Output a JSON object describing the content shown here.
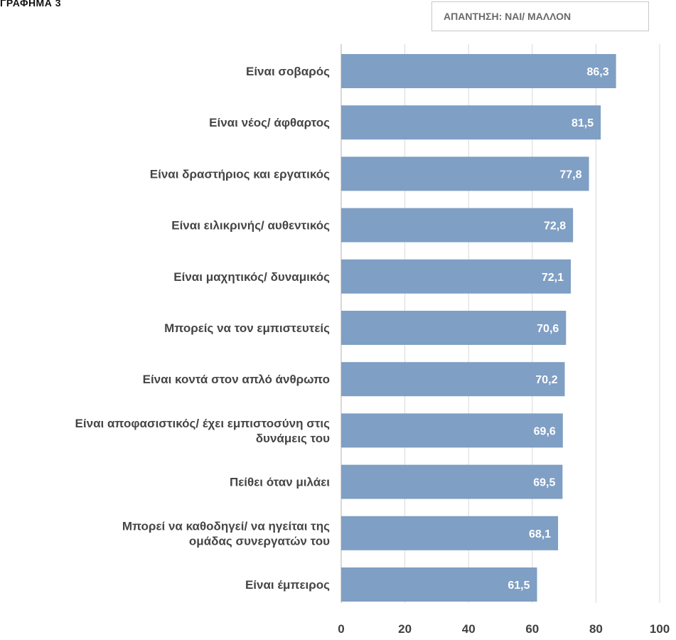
{
  "header": {
    "title": "ΓΡΑΦΗΜΑ 3",
    "legend": "ΑΠΑΝΤΗΣΗ: ΝΑΙ/ ΜΑΛΛΟΝ"
  },
  "colors": {
    "bar": "#7f9fc4",
    "grid": "#d9d9d9",
    "axis": "#bfbfbf"
  },
  "chart_data": {
    "type": "bar",
    "orientation": "horizontal",
    "categories": [
      [
        "Είναι σοβαρός"
      ],
      [
        "Είναι νέος/ άφθαρτος"
      ],
      [
        "Είναι δραστήριος και εργατικός"
      ],
      [
        "Είναι ειλικρινής/ αυθεντικός"
      ],
      [
        "Είναι μαχητικός/ δυναμικός"
      ],
      [
        "Μπορείς να τον εμπιστευτείς"
      ],
      [
        "Είναι κοντά στον απλό άνθρωπο"
      ],
      [
        "Είναι αποφασιστικός/ έχει εμπιστοσύνη στις",
        "δυνάμεις του"
      ],
      [
        "Πείθει όταν μιλάει"
      ],
      [
        "Μπορεί να καθοδηγεί/ να ηγείται της",
        "ομάδας συνεργατών του"
      ],
      [
        "Είναι έμπειρος"
      ]
    ],
    "values": [
      86.3,
      81.5,
      77.8,
      72.8,
      72.1,
      70.6,
      70.2,
      69.6,
      69.5,
      68.1,
      61.5
    ],
    "value_labels": [
      "86,3",
      "81,5",
      "77,8",
      "72,8",
      "72,1",
      "70,6",
      "70,2",
      "69,6",
      "69,5",
      "68,1",
      "61,5"
    ],
    "xlim": [
      0,
      100
    ],
    "xticks": [
      0,
      20,
      40,
      60,
      80,
      100
    ],
    "grid": true,
    "legend": [
      "ΑΠΑΝΤΗΣΗ: ΝΑΙ/ ΜΑΛΛΟΝ"
    ]
  }
}
